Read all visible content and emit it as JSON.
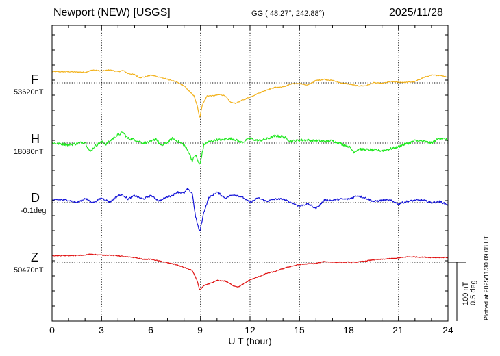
{
  "header": {
    "station": "Newport (NEW)  [USGS]",
    "coords": "GG ( 48.27°, 242.88°)",
    "date": "2025/11/28"
  },
  "plotted_note": "Plotted at 2025/11/30 09:08 UT",
  "scale": {
    "nt": "100 nT",
    "deg": "0.5 deg"
  },
  "colors": {
    "F": "#f2b21c",
    "H": "#1fe81f",
    "D": "#1414d8",
    "Z": "#e01212"
  },
  "chart_data": {
    "type": "line",
    "title": "Newport (NEW)  [USGS]",
    "xlabel": "U T (hour)",
    "xlim": [
      0,
      24
    ],
    "xticks": [
      "0",
      "3",
      "6",
      "9",
      "12",
      "15",
      "18",
      "21",
      "24"
    ],
    "grid": true,
    "scale_units_per_bar": {
      "nT": 100,
      "deg": 0.5
    },
    "series": [
      {
        "name": "F",
        "baseline_label": "53620nT",
        "unit": "nT",
        "base": 53620,
        "x": [
          0,
          1,
          2,
          2.5,
          3,
          3.5,
          4,
          4.3,
          4.6,
          5,
          5.3,
          5.6,
          6,
          6.5,
          7,
          7.5,
          8,
          8.3,
          8.6,
          8.8,
          8.95,
          9.1,
          9.4,
          9.8,
          10.2,
          10.5,
          10.8,
          11.1,
          11.5,
          12,
          12.5,
          13,
          13.5,
          14,
          14.5,
          15,
          15.5,
          16,
          16.5,
          17,
          17.5,
          18,
          18.5,
          19,
          19.5,
          20,
          20.5,
          21,
          21.5,
          22,
          22.5,
          23,
          23.5,
          24
        ],
        "values": [
          19,
          19,
          18,
          22,
          20,
          22,
          19,
          21,
          16,
          14,
          9,
          10,
          13,
          10,
          6,
          2,
          -5,
          -14,
          -22,
          -38,
          -60,
          -38,
          -22,
          -22,
          -20,
          -22,
          -33,
          -35,
          -30,
          -24,
          -18,
          -12,
          -8,
          -7,
          -2,
          -1,
          -4,
          4,
          6,
          4,
          0,
          -2,
          -5,
          -5,
          0,
          -1,
          2,
          1,
          1,
          2,
          9,
          13,
          13,
          10
        ]
      },
      {
        "name": "H",
        "baseline_label": "18080nT",
        "unit": "nT",
        "base": 18080,
        "x": [
          0,
          0.5,
          1,
          1.5,
          2,
          2.3,
          2.6,
          3,
          3.3,
          3.6,
          4,
          4.3,
          4.6,
          5,
          5.5,
          6,
          6.3,
          6.6,
          7,
          7.3,
          7.6,
          8,
          8.3,
          8.5,
          8.7,
          8.95,
          9.2,
          9.5,
          10,
          10.3,
          10.6,
          11,
          11.5,
          12,
          12.5,
          13,
          13.5,
          14,
          14.5,
          15,
          15.5,
          16,
          16.5,
          17,
          17.5,
          18,
          18.3,
          18.6,
          19,
          19.5,
          20,
          20.5,
          21,
          21.5,
          22,
          22.5,
          23,
          23.5,
          24
        ],
        "values": [
          0,
          -1,
          -3,
          -1,
          2,
          -15,
          -5,
          2,
          -2,
          6,
          14,
          18,
          8,
          6,
          0,
          2,
          8,
          -5,
          1,
          8,
          3,
          -3,
          -16,
          -30,
          -20,
          -38,
          -3,
          2,
          6,
          5,
          8,
          7,
          1,
          8,
          4,
          7,
          12,
          11,
          3,
          5,
          5,
          4,
          3,
          4,
          -1,
          -6,
          -15,
          -10,
          -11,
          -12,
          -13,
          -10,
          -6,
          -1,
          4,
          3,
          0,
          9,
          5
        ]
      },
      {
        "name": "D",
        "baseline_label": "-0.1deg",
        "unit": "deg",
        "base": -0.1,
        "x": [
          0,
          0.5,
          1,
          1.5,
          2,
          2.5,
          3,
          3.5,
          4,
          4.3,
          4.6,
          5,
          5.5,
          6,
          6.5,
          7,
          7.3,
          7.6,
          8,
          8.2,
          8.5,
          8.7,
          8.95,
          9.2,
          9.5,
          10,
          10.5,
          11,
          11.5,
          12,
          12.5,
          13,
          13.5,
          14,
          14.5,
          15,
          15.5,
          16,
          16.5,
          17,
          17.5,
          18,
          18.5,
          19,
          19.5,
          20,
          20.5,
          21,
          21.5,
          22,
          22.5,
          23,
          23.5,
          24
        ],
        "values": [
          0.02,
          0.025,
          0.02,
          0,
          0.035,
          0,
          0.04,
          0.005,
          0.06,
          0.065,
          0.03,
          0.06,
          0.03,
          0.06,
          0.015,
          0.05,
          0.06,
          0.09,
          0.08,
          0.115,
          0.08,
          -0.12,
          -0.25,
          -0.08,
          0.04,
          0.09,
          0.04,
          0.07,
          0.05,
          0,
          0.04,
          0.01,
          0.03,
          0.03,
          0,
          -0.03,
          -0.01,
          -0.05,
          0.02,
          0.02,
          0.03,
          0.03,
          0.06,
          0.04,
          0.01,
          0.02,
          0.02,
          -0.01,
          0.01,
          0.02,
          0.02,
          0,
          0.01,
          -0.02
        ]
      },
      {
        "name": "Z",
        "baseline_label": "50470nT",
        "unit": "nT",
        "base": 50470,
        "x": [
          0,
          1,
          2,
          2.3,
          2.6,
          3,
          3.5,
          4,
          4.5,
          5,
          5.5,
          6,
          6.5,
          7,
          7.5,
          8,
          8.5,
          8.8,
          8.95,
          9.2,
          9.6,
          10,
          10.5,
          11,
          11.3,
          11.6,
          12,
          12.5,
          13,
          13.5,
          14,
          14.5,
          15,
          15.5,
          16,
          16.5,
          17,
          17.5,
          18,
          18.5,
          19,
          19.5,
          20,
          21,
          21.5,
          22,
          23,
          24
        ],
        "values": [
          11,
          11,
          12,
          14,
          13,
          12,
          12,
          11,
          9,
          8,
          5,
          5,
          2,
          -1,
          -4,
          -9,
          -14,
          -32,
          -47,
          -40,
          -36,
          -31,
          -32,
          -40,
          -42,
          -37,
          -30,
          -25,
          -19,
          -16,
          -11,
          -7,
          -4,
          -3,
          -2,
          1,
          0,
          0,
          0,
          0,
          2,
          4,
          5,
          7,
          9,
          9,
          8,
          8
        ]
      }
    ]
  }
}
